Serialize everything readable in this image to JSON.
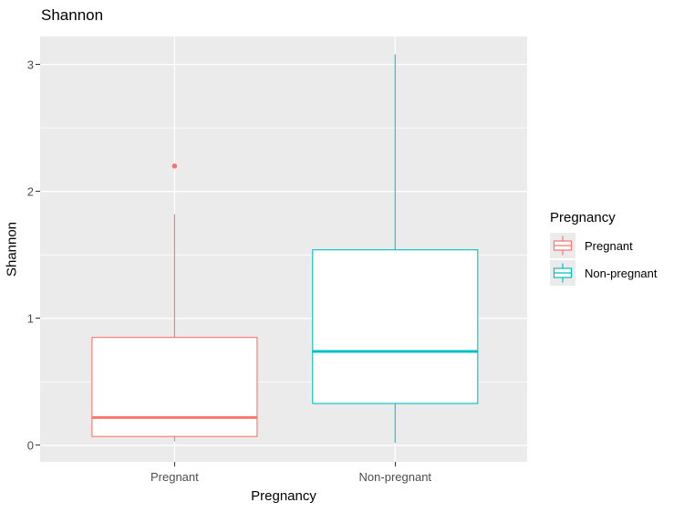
{
  "title": "Shannon",
  "axes": {
    "x": {
      "title": "Pregnancy",
      "categories": [
        "Pregnant",
        "Non-pregnant"
      ]
    },
    "y": {
      "title": "Shannon",
      "tick_labels": [
        "0",
        "1",
        "2",
        "3"
      ]
    }
  },
  "legend": {
    "title": "Pregnancy",
    "position": "right",
    "items": [
      {
        "label": "Pregnant",
        "color": "#F8766D"
      },
      {
        "label": "Non-pregnant",
        "color": "#00BFC4"
      }
    ]
  },
  "colors": {
    "panel_background": "#EBEBEB",
    "gridline": "#FFFFFF",
    "tick_text": "#4D4D4D",
    "tick_mark": "#333333",
    "text": "#000000",
    "box_fill": "#FFFFFF"
  },
  "chart_data": {
    "type": "boxplot",
    "title": "Shannon",
    "xlabel": "Pregnancy",
    "ylabel": "Shannon",
    "categories": [
      "Pregnant",
      "Non-pregnant"
    ],
    "series": [
      {
        "name": "Pregnant",
        "color": "#F8766D",
        "whisker_low": 0.03,
        "q1": 0.07,
        "median": 0.22,
        "q3": 0.85,
        "whisker_high": 1.82,
        "outliers": [
          2.2
        ]
      },
      {
        "name": "Non-pregnant",
        "color": "#00BFC4",
        "whisker_low": 0.02,
        "q1": 0.33,
        "median": 0.74,
        "q3": 1.54,
        "whisker_high": 3.08,
        "outliers": []
      }
    ],
    "yticks": [
      0,
      1,
      2,
      3
    ],
    "yticks_minor": [
      0.5,
      1.5,
      2.5
    ],
    "ylim": [
      -0.13,
      3.22
    ],
    "grid": true,
    "legend_position": "right"
  }
}
